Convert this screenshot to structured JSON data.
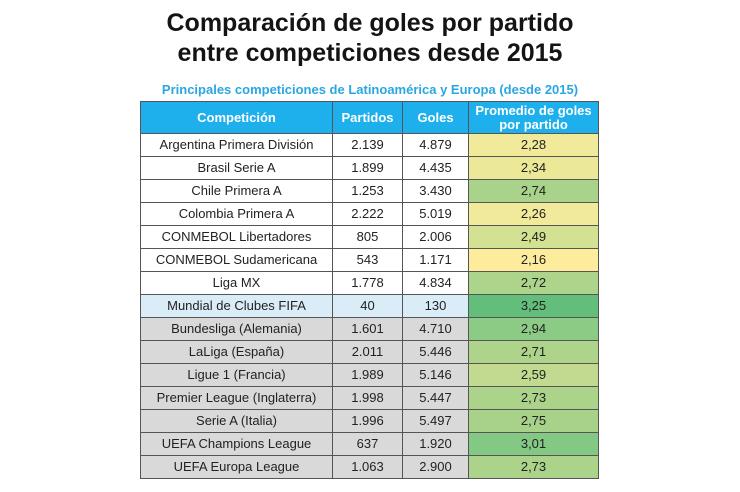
{
  "title_line1": "Comparación de goles por partido",
  "title_line2": "entre competiciones desde 2015",
  "subtitle": "Principales competiciones de Latinoamérica y Europa (desde 2015)",
  "table": {
    "headers": [
      "Competición",
      "Partidos",
      "Goles",
      "Promedio de goles por partido"
    ],
    "rows": [
      {
        "name": "Argentina Primera División",
        "matches": "2.139",
        "goals": "4.879",
        "avg": "2,28",
        "avg_color": "#f1ea9b",
        "region": "latam"
      },
      {
        "name": "Brasil Serie A",
        "matches": "1.899",
        "goals": "4.435",
        "avg": "2,34",
        "avg_color": "#ebe898",
        "region": "latam"
      },
      {
        "name": "Chile Primera A",
        "matches": "1.253",
        "goals": "3.430",
        "avg": "2,74",
        "avg_color": "#a9d38a",
        "region": "latam"
      },
      {
        "name": "Colombia Primera A",
        "matches": "2.222",
        "goals": "5.019",
        "avg": "2,26",
        "avg_color": "#f2ea9b",
        "region": "latam"
      },
      {
        "name": "CONMEBOL Libertadores",
        "matches": "805",
        "goals": "2.006",
        "avg": "2,49",
        "avg_color": "#d3e193",
        "region": "latam"
      },
      {
        "name": "CONMEBOL Sudamericana",
        "matches": "543",
        "goals": "1.171",
        "avg": "2,16",
        "avg_color": "#fdec9c",
        "region": "latam"
      },
      {
        "name": "Liga MX",
        "matches": "1.778",
        "goals": "4.834",
        "avg": "2,72",
        "avg_color": "#acd48a",
        "region": "latam"
      },
      {
        "name": "Mundial de Clubes FIFA",
        "matches": "40",
        "goals": "130",
        "avg": "3,25",
        "avg_color": "#63be7b",
        "region": "world"
      },
      {
        "name": "Bundesliga (Alemania)",
        "matches": "1.601",
        "goals": "4.710",
        "avg": "2,94",
        "avg_color": "#8ccb85",
        "region": "europe"
      },
      {
        "name": "LaLiga (España)",
        "matches": "2.011",
        "goals": "5.446",
        "avg": "2,71",
        "avg_color": "#aed48b",
        "region": "europe"
      },
      {
        "name": "Ligue 1 (Francia)",
        "matches": "1.989",
        "goals": "5.146",
        "avg": "2,59",
        "avg_color": "#c1da8f",
        "region": "europe"
      },
      {
        "name": "Premier League (Inglaterra)",
        "matches": "1.998",
        "goals": "5.447",
        "avg": "2,73",
        "avg_color": "#abd38a",
        "region": "europe"
      },
      {
        "name": "Serie A (Italia)",
        "matches": "1.996",
        "goals": "5.497",
        "avg": "2,75",
        "avg_color": "#a8d28a",
        "region": "europe"
      },
      {
        "name": "UEFA Champions League",
        "matches": "637",
        "goals": "1.920",
        "avg": "3,01",
        "avg_color": "#83c883",
        "region": "europe"
      },
      {
        "name": "UEFA Europa League",
        "matches": "1.063",
        "goals": "2.900",
        "avg": "2,73",
        "avg_color": "#abd38a",
        "region": "europe"
      }
    ]
  }
}
